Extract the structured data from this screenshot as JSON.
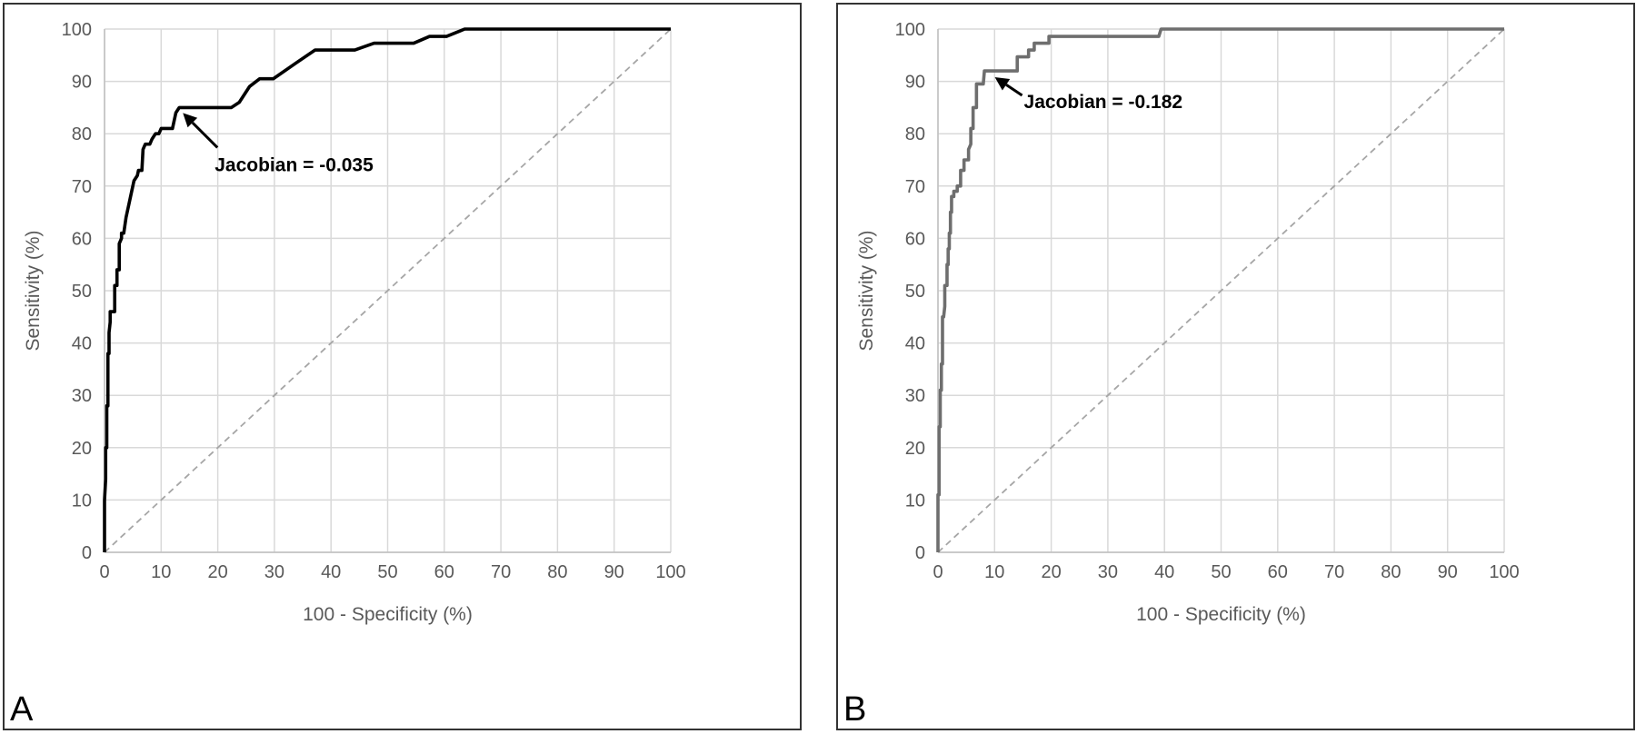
{
  "chart_data": [
    {
      "panel_label": "A",
      "type": "line",
      "xlabel": "100 - Specificity (%)",
      "ylabel": "Sensitivity (%)",
      "xlim": [
        0,
        100
      ],
      "ylim": [
        0,
        100
      ],
      "x_ticks": [
        "0",
        "10",
        "20",
        "30",
        "40",
        "50",
        "60",
        "70",
        "80",
        "90",
        "100"
      ],
      "y_ticks": [
        "0",
        "10",
        "20",
        "30",
        "40",
        "50",
        "60",
        "70",
        "80",
        "90",
        "100"
      ],
      "grid": true,
      "series": [
        {
          "color": "#000000",
          "points": [
            [
              0,
              0
            ],
            [
              0,
              10
            ],
            [
              0.2,
              14
            ],
            [
              0.2,
              20
            ],
            [
              0.4,
              20
            ],
            [
              0.4,
              28
            ],
            [
              0.6,
              28
            ],
            [
              0.6,
              38
            ],
            [
              0.8,
              38
            ],
            [
              0.8,
              42
            ],
            [
              1,
              44
            ],
            [
              1,
              46
            ],
            [
              1.8,
              46
            ],
            [
              1.8,
              51
            ],
            [
              2.2,
              51
            ],
            [
              2.2,
              54
            ],
            [
              2.6,
              54
            ],
            [
              2.6,
              59
            ],
            [
              3,
              60
            ],
            [
              3,
              61
            ],
            [
              3.4,
              61
            ],
            [
              3.8,
              64
            ],
            [
              4,
              65
            ],
            [
              4.4,
              67
            ],
            [
              4.8,
              69
            ],
            [
              5.2,
              71
            ],
            [
              5.8,
              72
            ],
            [
              6,
              73
            ],
            [
              6.6,
              73
            ],
            [
              6.8,
              77
            ],
            [
              7.2,
              78
            ],
            [
              8,
              78
            ],
            [
              8.4,
              79
            ],
            [
              9,
              80
            ],
            [
              9.6,
              80
            ],
            [
              10,
              81
            ],
            [
              12,
              81
            ],
            [
              12.6,
              84
            ],
            [
              13.2,
              85
            ],
            [
              22.4,
              85
            ],
            [
              23.8,
              86
            ],
            [
              25.6,
              89
            ],
            [
              27.4,
              90.5
            ],
            [
              29.8,
              90.5
            ],
            [
              33.8,
              93.5
            ],
            [
              37.2,
              96
            ],
            [
              44.2,
              96
            ],
            [
              47.6,
              97.3
            ],
            [
              54.6,
              97.3
            ],
            [
              57.4,
              98.6
            ],
            [
              60.4,
              98.6
            ],
            [
              63.6,
              100
            ],
            [
              100,
              100
            ]
          ]
        }
      ],
      "reference_line": [
        [
          0,
          0
        ],
        [
          100,
          100
        ]
      ],
      "annotations": [
        {
          "text": "Jacobian = -0.035",
          "x": 13.2,
          "y": 85
        }
      ]
    },
    {
      "panel_label": "B",
      "type": "line",
      "xlabel": "100 - Specificity (%)",
      "ylabel": "Sensitivity (%)",
      "xlim": [
        0,
        100
      ],
      "ylim": [
        0,
        100
      ],
      "x_ticks": [
        "0",
        "10",
        "20",
        "30",
        "40",
        "50",
        "60",
        "70",
        "80",
        "90",
        "100"
      ],
      "y_ticks": [
        "0",
        "10",
        "20",
        "30",
        "40",
        "50",
        "60",
        "70",
        "80",
        "90",
        "100"
      ],
      "grid": true,
      "series": [
        {
          "color": "#6e6e6e",
          "points": [
            [
              0,
              0
            ],
            [
              0,
              11
            ],
            [
              0.2,
              11
            ],
            [
              0.2,
              24
            ],
            [
              0.4,
              24
            ],
            [
              0.4,
              31
            ],
            [
              0.6,
              31
            ],
            [
              0.6,
              36
            ],
            [
              0.8,
              36
            ],
            [
              0.8,
              45
            ],
            [
              1,
              45
            ],
            [
              1.2,
              47
            ],
            [
              1.2,
              51
            ],
            [
              1.6,
              51
            ],
            [
              1.6,
              55
            ],
            [
              1.8,
              55
            ],
            [
              1.8,
              58
            ],
            [
              2,
              58
            ],
            [
              2,
              61
            ],
            [
              2.2,
              61
            ],
            [
              2.2,
              65
            ],
            [
              2.4,
              65
            ],
            [
              2.4,
              68
            ],
            [
              2.8,
              68
            ],
            [
              2.8,
              69
            ],
            [
              3.4,
              69
            ],
            [
              3.4,
              70
            ],
            [
              4,
              70
            ],
            [
              4,
              73
            ],
            [
              4.6,
              73
            ],
            [
              4.6,
              75
            ],
            [
              5.4,
              75
            ],
            [
              5.4,
              77
            ],
            [
              5.8,
              78
            ],
            [
              5.8,
              81
            ],
            [
              6.2,
              81
            ],
            [
              6.2,
              85
            ],
            [
              6.8,
              85
            ],
            [
              6.8,
              89.5
            ],
            [
              8,
              89.5
            ],
            [
              8.2,
              92
            ],
            [
              14,
              92
            ],
            [
              14,
              94.7
            ],
            [
              16,
              94.7
            ],
            [
              16,
              96
            ],
            [
              17,
              96
            ],
            [
              17,
              97.3
            ],
            [
              19.6,
              97.3
            ],
            [
              19.6,
              98.6
            ],
            [
              39,
              98.6
            ],
            [
              39.4,
              100
            ],
            [
              100,
              100
            ]
          ]
        }
      ],
      "reference_line": [
        [
          0,
          0
        ],
        [
          100,
          100
        ]
      ],
      "annotations": [
        {
          "text": "Jacobian = -0.182",
          "x": 9.4,
          "y": 91.5
        }
      ]
    }
  ]
}
